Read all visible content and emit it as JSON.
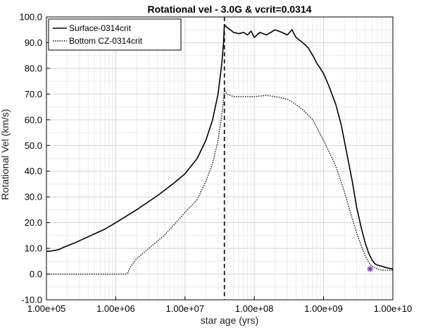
{
  "chart_data": {
    "type": "line",
    "title": "Rotational vel - 3.0G & vcrit=0.0314",
    "xlabel": "star age (yrs)",
    "ylabel": "Rotational Vel (km/s)",
    "xscale": "log",
    "xlim": [
      100000,
      10000000000
    ],
    "ylim": [
      -10,
      100
    ],
    "x_tick_values": [
      100000,
      1000000,
      10000000,
      100000000,
      1000000000,
      10000000000
    ],
    "x_tick_labels": [
      "1.00e+05",
      "1.00e+06",
      "1.00e+07",
      "1.00e+08",
      "1.00e+09",
      "1.00e+10"
    ],
    "y_tick_values": [
      -10,
      0,
      10,
      20,
      30,
      40,
      50,
      60,
      70,
      80,
      90,
      100
    ],
    "y_tick_labels": [
      "-10.0",
      "0.0",
      "10.0",
      "20.0",
      "30.0",
      "40.0",
      "50.0",
      "60.0",
      "70.0",
      "80.0",
      "90.0",
      "100.0"
    ],
    "grid": true,
    "minor_grid": true,
    "legend_position": "top-left",
    "series": [
      {
        "name": "Surface-0314crit",
        "style": "solid",
        "color": "#000000",
        "x": [
          100000,
          120000,
          150000,
          180000,
          250000,
          400000,
          700000,
          1000000,
          2000000,
          4000000,
          7000000,
          10000000,
          15000000,
          20000000,
          25000000,
          30000000,
          34000000,
          36000000,
          37000000,
          40000000,
          45000000,
          50000000,
          60000000,
          70000000,
          80000000,
          90000000,
          100000000,
          120000000,
          150000000,
          200000000,
          250000000,
          300000000,
          350000000,
          400000000,
          500000000,
          600000000,
          700000000,
          800000000,
          1000000000,
          1200000000,
          1500000000,
          1800000000,
          2200000000,
          2600000000,
          3000000000,
          3500000000,
          4000000000,
          4500000000,
          5000000000,
          5500000000,
          6000000000,
          7000000000,
          8000000000,
          9000000000,
          10000000000
        ],
        "values": [
          8.8,
          9.0,
          9.5,
          10.5,
          12.0,
          14.5,
          17.5,
          20.0,
          25.0,
          30.5,
          35.5,
          39.0,
          45.0,
          52.0,
          60.0,
          70.0,
          82.0,
          90.0,
          97.0,
          96.0,
          95.0,
          94.0,
          93.5,
          94.0,
          93.0,
          94.5,
          92.0,
          94.0,
          93.0,
          95.0,
          94.0,
          93.0,
          95.0,
          92.0,
          90.0,
          88.0,
          85.0,
          82.0,
          78.0,
          73.0,
          66.0,
          58.0,
          46.0,
          36.0,
          26.0,
          18.0,
          12.0,
          8.0,
          5.5,
          4.0,
          3.5,
          3.0,
          2.5,
          2.2,
          2.0
        ]
      },
      {
        "name": "Bottom CZ-0314crit",
        "style": "dotted",
        "color": "#000000",
        "x": [
          100000,
          500000,
          1000000,
          1400000,
          1500000,
          1600000,
          2000000,
          3000000,
          5000000,
          8000000,
          10000000,
          15000000,
          20000000,
          25000000,
          30000000,
          34000000,
          36000000,
          37000000,
          40000000,
          50000000,
          70000000,
          100000000,
          150000000,
          200000000,
          250000000,
          300000000,
          400000000,
          500000000,
          700000000,
          1000000000,
          1500000000,
          2000000000,
          2500000000,
          3000000000,
          3500000000,
          4000000000,
          4500000000,
          5000000000,
          6000000000,
          7000000000,
          8000000000,
          9000000000,
          10000000000
        ],
        "values": [
          0.0,
          0.0,
          0.0,
          0.0,
          0.5,
          2.5,
          6.0,
          10.0,
          15.0,
          21.0,
          24.0,
          29.0,
          36.0,
          43.0,
          52.0,
          62.0,
          68.0,
          71.5,
          70.0,
          69.0,
          69.0,
          69.0,
          69.5,
          69.0,
          68.5,
          68.0,
          66.0,
          64.0,
          60.0,
          52.0,
          42.0,
          32.0,
          23.0,
          16.0,
          11.0,
          7.0,
          4.5,
          3.0,
          2.0,
          1.5,
          1.5,
          1.5,
          1.5
        ]
      }
    ],
    "vertical_line": {
      "x": 37000000,
      "style": "dashed",
      "color": "#000000"
    },
    "marker": {
      "x": 4700000000,
      "y": 2.0,
      "symbol": "*",
      "color": "#7a2bbf"
    }
  }
}
